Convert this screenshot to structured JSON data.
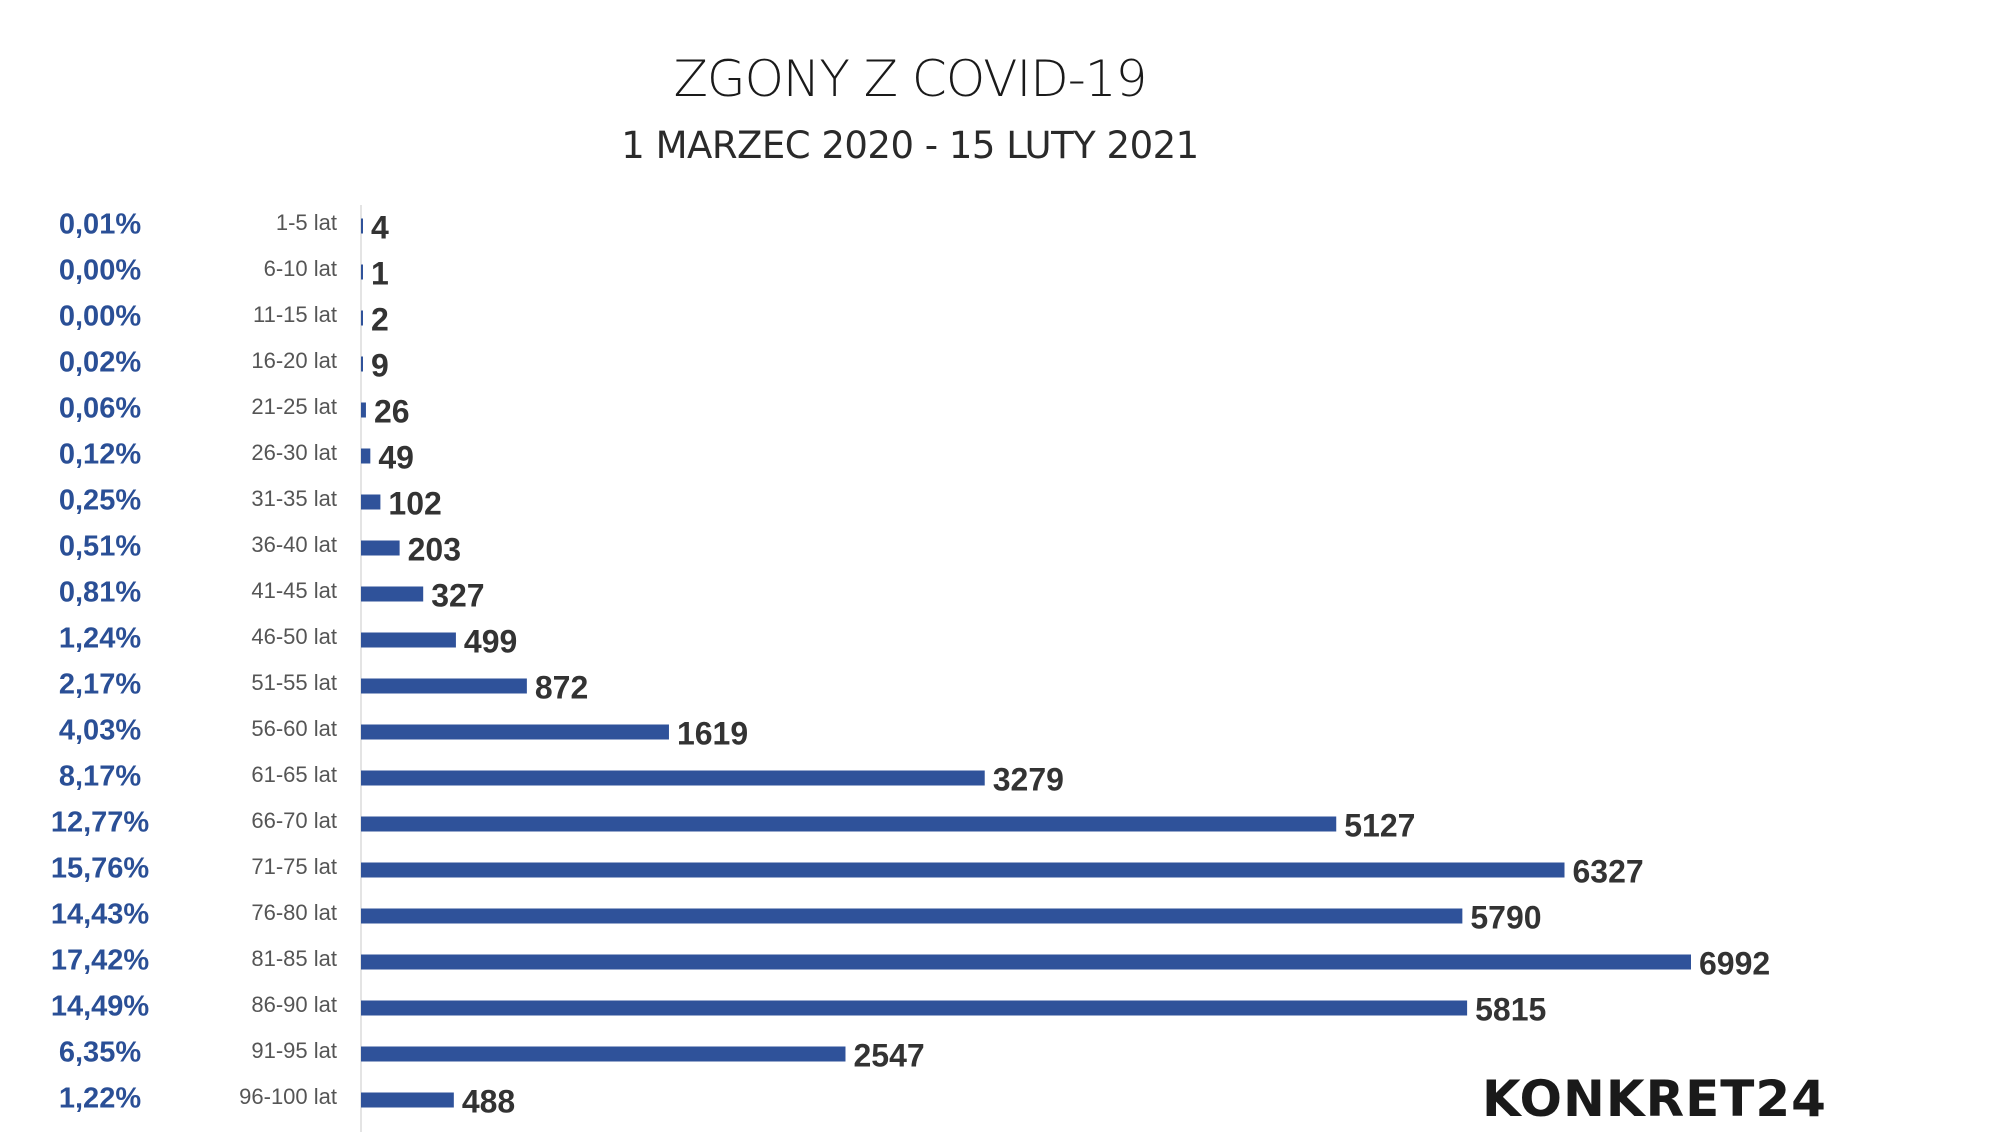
{
  "chart_data": {
    "type": "bar",
    "orientation": "horizontal",
    "title": "ZGONY Z COVID-19",
    "subtitle": "1 MARZEC 2020 - 15 LUTY 2021",
    "categories": [
      "1-5 lat",
      "6-10 lat",
      "11-15 lat",
      "16-20 lat",
      "21-25 lat",
      "26-30 lat",
      "31-35 lat",
      "36-40 lat",
      "41-45 lat",
      "46-50 lat",
      "51-55 lat",
      "56-60 lat",
      "61-65 lat",
      "66-70 lat",
      "71-75 lat",
      "76-80 lat",
      "81-85 lat",
      "86-90 lat",
      "91-95 lat",
      "96-100 lat"
    ],
    "values": [
      4,
      1,
      2,
      9,
      26,
      49,
      102,
      203,
      327,
      499,
      872,
      1619,
      3279,
      5127,
      6327,
      5790,
      6992,
      5815,
      2547,
      488
    ],
    "percentages": [
      "0,01%",
      "0,00%",
      "0,00%",
      "0,02%",
      "0,06%",
      "0,12%",
      "0,25%",
      "0,51%",
      "0,81%",
      "1,24%",
      "2,17%",
      "4,03%",
      "8,17%",
      "12,77%",
      "15,76%",
      "14,43%",
      "17,42%",
      "14,49%",
      "6,35%",
      "1,22%"
    ],
    "xlim": [
      0,
      6992
    ],
    "grid": false,
    "colors": {
      "bar": "#2f529a",
      "percent": "#2a4f96",
      "value": "#333333",
      "label": "#555555"
    }
  },
  "brand": {
    "logo_text": "KONKRET24"
  }
}
